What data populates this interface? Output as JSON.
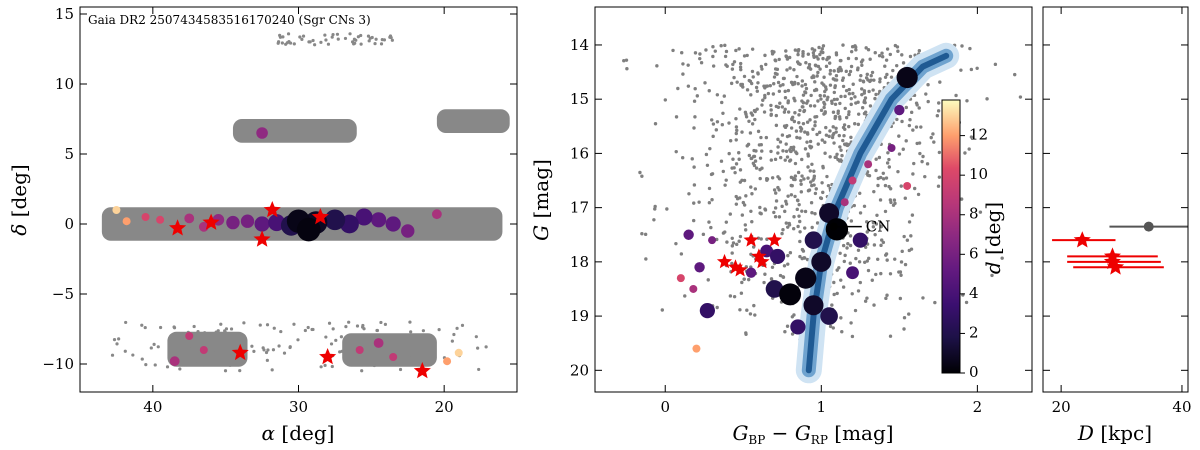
{
  "chart_data": [
    {
      "type": "scatter",
      "panel": "sky",
      "title": "Gaia DR2 2507434583516170240 (Sgr CNs 3)",
      "xlabel_sym": "α",
      "xlabel_unit": " [deg]",
      "ylabel_sym": "δ",
      "ylabel_unit": " [deg]",
      "xlim": [
        45,
        15
      ],
      "ylim": [
        -12,
        15.5
      ],
      "xticks": [
        40,
        30,
        20
      ],
      "yticks": [
        -10,
        -5,
        0,
        5,
        10,
        15
      ],
      "background_fields": [
        {
          "ra": [
            34.5,
            26.0
          ],
          "dec": [
            5.8,
            7.5
          ]
        },
        {
          "ra": [
            20.5,
            15.5
          ],
          "dec": [
            6.5,
            8.2
          ]
        },
        {
          "ra": [
            43.5,
            16.0
          ],
          "dec": [
            -1.2,
            1.2
          ]
        },
        {
          "ra": [
            39.0,
            33.5
          ],
          "dec": [
            -10.2,
            -7.7
          ]
        },
        {
          "ra": [
            27.0,
            20.5
          ],
          "dec": [
            -10.2,
            -7.8
          ]
        }
      ],
      "stars": [
        {
          "ra": 38.3,
          "dec": -0.3
        },
        {
          "ra": 36.0,
          "dec": 0.1
        },
        {
          "ra": 32.5,
          "dec": -1.1
        },
        {
          "ra": 31.8,
          "dec": 1.0
        },
        {
          "ra": 28.5,
          "dec": 0.5
        },
        {
          "ra": 34.0,
          "dec": -9.2
        },
        {
          "ra": 28.0,
          "dec": -9.5
        },
        {
          "ra": 21.5,
          "dec": -10.5
        }
      ],
      "members": [
        {
          "ra": 42.5,
          "dec": 1.0,
          "d": 13
        },
        {
          "ra": 41.8,
          "dec": 0.2,
          "d": 12
        },
        {
          "ra": 40.5,
          "dec": 0.5,
          "d": 10
        },
        {
          "ra": 39.5,
          "dec": 0.3,
          "d": 10
        },
        {
          "ra": 37.5,
          "dec": 0.4,
          "d": 8
        },
        {
          "ra": 36.5,
          "dec": -0.2,
          "d": 8
        },
        {
          "ra": 35.5,
          "dec": 0.3,
          "d": 7
        },
        {
          "ra": 34.5,
          "dec": 0.1,
          "d": 6
        },
        {
          "ra": 33.5,
          "dec": 0.2,
          "d": 6
        },
        {
          "ra": 32.5,
          "dec": 0.0,
          "d": 5
        },
        {
          "ra": 31.5,
          "dec": 0.1,
          "d": 4
        },
        {
          "ra": 30.5,
          "dec": -0.1,
          "d": 2
        },
        {
          "ra": 30.0,
          "dec": 0.2,
          "d": 0.5
        },
        {
          "ra": 29.3,
          "dec": -0.4,
          "d": 0.3
        },
        {
          "ra": 28.8,
          "dec": 0.1,
          "d": 0.8
        },
        {
          "ra": 27.5,
          "dec": 0.3,
          "d": 2
        },
        {
          "ra": 26.5,
          "dec": 0.0,
          "d": 3
        },
        {
          "ra": 25.5,
          "dec": 0.5,
          "d": 4
        },
        {
          "ra": 24.5,
          "dec": 0.3,
          "d": 5
        },
        {
          "ra": 23.5,
          "dec": 0.0,
          "d": 5
        },
        {
          "ra": 22.5,
          "dec": -0.5,
          "d": 6
        },
        {
          "ra": 20.5,
          "dec": 0.7,
          "d": 8
        },
        {
          "ra": 32.5,
          "dec": 6.5,
          "d": 7
        },
        {
          "ra": 37.5,
          "dec": -8.0,
          "d": 9
        },
        {
          "ra": 36.5,
          "dec": -9.0,
          "d": 9
        },
        {
          "ra": 38.5,
          "dec": -9.8,
          "d": 8
        },
        {
          "ra": 25.8,
          "dec": -9.0,
          "d": 9
        },
        {
          "ra": 24.5,
          "dec": -8.5,
          "d": 8
        },
        {
          "ra": 23.5,
          "dec": -9.5,
          "d": 9
        },
        {
          "ra": 19.0,
          "dec": -9.2,
          "d": 13
        },
        {
          "ra": 19.8,
          "dec": -9.8,
          "d": 12
        }
      ]
    },
    {
      "type": "scatter",
      "panel": "cmd",
      "xlabel": "G_BP − G_RP [mag]",
      "xlabel_unit": " [mag]",
      "ylabel_sym": "G",
      "ylabel_unit": " [mag]",
      "xlim": [
        -0.45,
        2.35
      ],
      "ylim": [
        20.4,
        13.3
      ],
      "xticks": [
        0,
        1,
        2
      ],
      "yticks": [
        14,
        15,
        16,
        17,
        18,
        19,
        20
      ],
      "isochrone": [
        {
          "c": 0.92,
          "g": 20.0
        },
        {
          "c": 0.95,
          "g": 19.0
        },
        {
          "c": 1.0,
          "g": 18.0
        },
        {
          "c": 1.1,
          "g": 17.0
        },
        {
          "c": 1.25,
          "g": 16.0
        },
        {
          "c": 1.45,
          "g": 15.0
        },
        {
          "c": 1.65,
          "g": 14.4
        },
        {
          "c": 1.8,
          "g": 14.2
        }
      ],
      "cn_marker": {
        "c": 1.08,
        "g": 17.35,
        "label": "CN"
      },
      "stars": [
        {
          "c": 0.38,
          "g": 18.0
        },
        {
          "c": 0.45,
          "g": 18.1
        },
        {
          "c": 0.55,
          "g": 17.6
        },
        {
          "c": 0.6,
          "g": 17.9
        },
        {
          "c": 0.7,
          "g": 17.6
        },
        {
          "c": 0.62,
          "g": 18.0
        },
        {
          "c": 0.48,
          "g": 18.15
        }
      ],
      "members": [
        {
          "c": 1.55,
          "g": 14.6,
          "d": 0.5
        },
        {
          "c": 1.5,
          "g": 15.2,
          "d": 5
        },
        {
          "c": 1.45,
          "g": 15.9,
          "d": 6
        },
        {
          "c": 1.3,
          "g": 16.2,
          "d": 8
        },
        {
          "c": 1.2,
          "g": 16.5,
          "d": 9
        },
        {
          "c": 1.15,
          "g": 16.9,
          "d": 8
        },
        {
          "c": 1.05,
          "g": 17.1,
          "d": 1
        },
        {
          "c": 1.1,
          "g": 17.4,
          "d": 0
        },
        {
          "c": 0.95,
          "g": 17.6,
          "d": 2
        },
        {
          "c": 1.0,
          "g": 18.0,
          "d": 1
        },
        {
          "c": 0.9,
          "g": 18.3,
          "d": 0.5
        },
        {
          "c": 0.8,
          "g": 18.6,
          "d": 0.2
        },
        {
          "c": 0.95,
          "g": 18.8,
          "d": 1
        },
        {
          "c": 1.05,
          "g": 19.0,
          "d": 2
        },
        {
          "c": 0.85,
          "g": 19.2,
          "d": 3
        },
        {
          "c": 0.27,
          "g": 18.9,
          "d": 3
        },
        {
          "c": 0.22,
          "g": 18.1,
          "d": 5
        },
        {
          "c": 0.3,
          "g": 17.6,
          "d": 6
        },
        {
          "c": 0.15,
          "g": 17.5,
          "d": 5
        },
        {
          "c": 0.18,
          "g": 18.5,
          "d": 8
        },
        {
          "c": 0.1,
          "g": 18.3,
          "d": 10
        },
        {
          "c": 0.65,
          "g": 17.8,
          "d": 4
        },
        {
          "c": 0.55,
          "g": 18.2,
          "d": 5
        },
        {
          "c": 0.72,
          "g": 17.9,
          "d": 3
        },
        {
          "c": 1.25,
          "g": 17.6,
          "d": 3
        },
        {
          "c": 1.2,
          "g": 18.2,
          "d": 4
        },
        {
          "c": 0.2,
          "g": 19.6,
          "d": 12
        },
        {
          "c": 1.55,
          "g": 16.6,
          "d": 10
        },
        {
          "c": 0.7,
          "g": 18.5,
          "d": 2
        }
      ],
      "colorbar": {
        "label_sym": "d",
        "label_unit": " [deg]",
        "min": 0,
        "max": 13.8,
        "ticks": [
          0,
          2,
          4,
          6,
          8,
          10,
          12
        ]
      }
    },
    {
      "type": "scatter",
      "panel": "distance",
      "xlabel_sym": "D",
      "xlabel_unit": " [kpc]",
      "xlim": [
        17,
        41
      ],
      "ylim": [
        20.4,
        13.3
      ],
      "xticks": [
        20,
        40
      ],
      "cn_point": {
        "D": 34.5,
        "Dlo": 28.0,
        "Dhi": 41.0,
        "g": 17.35
      },
      "star_points": [
        {
          "D": 23.5,
          "Dlo": 18.5,
          "Dhi": 29.0,
          "g": 17.6
        },
        {
          "D": 28.5,
          "Dlo": 21.0,
          "Dhi": 36.0,
          "g": 17.9
        },
        {
          "D": 28.5,
          "Dlo": 21.0,
          "Dhi": 36.5,
          "g": 18.0
        },
        {
          "D": 29.0,
          "Dlo": 22.0,
          "Dhi": 37.0,
          "g": 18.1
        }
      ]
    }
  ]
}
